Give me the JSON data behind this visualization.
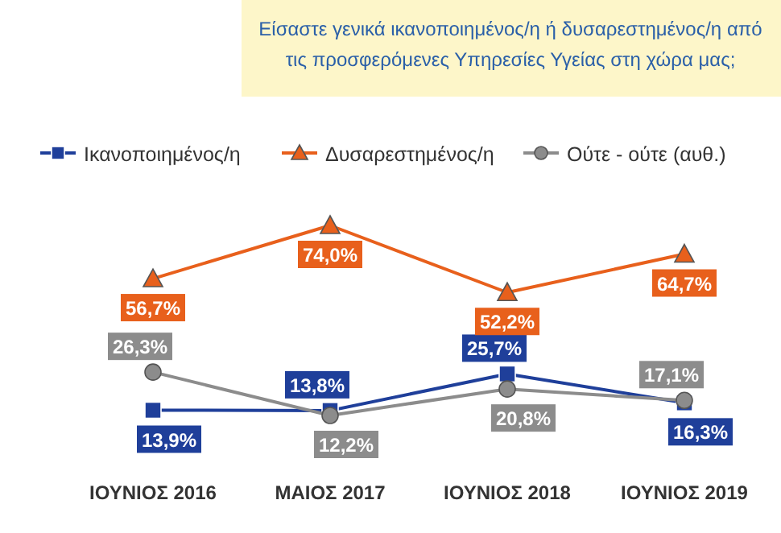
{
  "chart_data": {
    "type": "line",
    "title": "Είσαστε γενικά ικανοποιημένος/η ή δυσαρεστημένος/η από τις προσφερόμενες Υπηρεσίες Υγείας στη χώρα μας;",
    "categories": [
      "ΙΟΥΝΙΟΣ 2016",
      "ΜΑΙΟΣ 2017",
      "ΙΟΥΝΙΟΣ 2018",
      "ΙΟΥΝΙΟΣ 2019"
    ],
    "series": [
      {
        "name": "Ικανοποιημένος/η",
        "color": "#1f3f9a",
        "marker": "square",
        "values": [
          13.9,
          13.8,
          25.7,
          16.3
        ],
        "value_labels": [
          "13,9%",
          "13,8%",
          "25,7%",
          "16,3%"
        ]
      },
      {
        "name": "Δυσαρεστημένος/η",
        "color": "#e8601c",
        "marker": "triangle",
        "values": [
          56.7,
          74.0,
          52.2,
          64.7
        ],
        "value_labels": [
          "56,7%",
          "74,0%",
          "52,2%",
          "64,7%"
        ]
      },
      {
        "name": "Ούτε - ούτε (αυθ.)",
        "color": "#8c8c8c",
        "marker": "circle",
        "values": [
          26.3,
          12.2,
          20.8,
          17.1
        ],
        "value_labels": [
          "26,3%",
          "12,2%",
          "20,8%",
          "17,1%"
        ]
      }
    ],
    "data_labels": true,
    "legend": "top",
    "tick_labels": "x"
  }
}
